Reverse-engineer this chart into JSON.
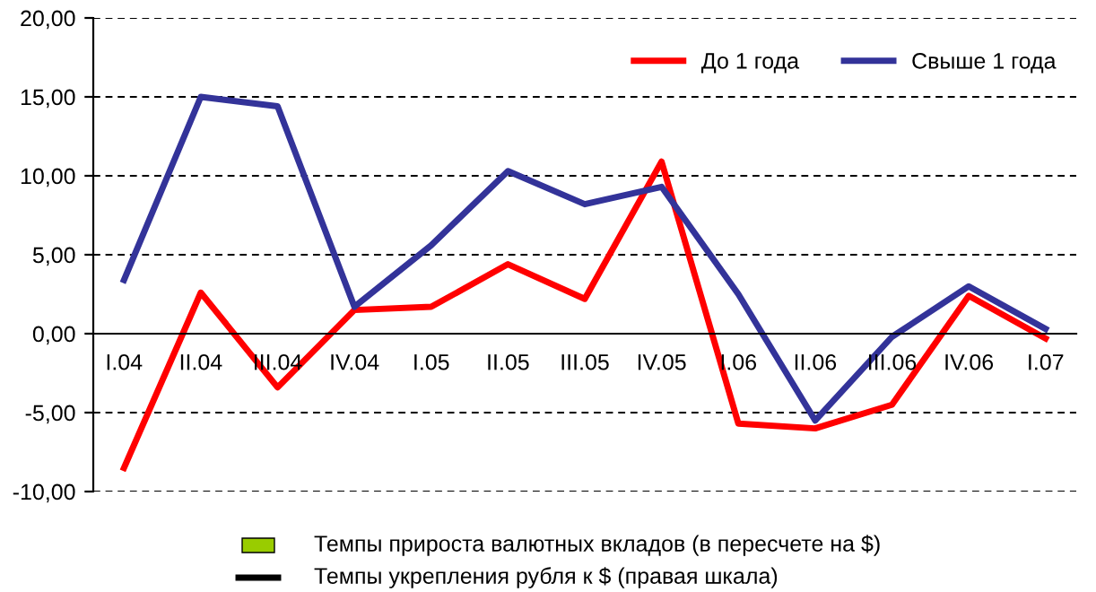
{
  "chart_data": {
    "type": "line",
    "categories": [
      "I.04",
      "II.04",
      "III.04",
      "IV.04",
      "I.05",
      "II.05",
      "III.05",
      "IV.05",
      "I.06",
      "II.06",
      "III.06",
      "IV.06",
      "I.07"
    ],
    "series": [
      {
        "name": "До 1 года",
        "color": "#ff0000",
        "values": [
          -8.5,
          2.6,
          -3.4,
          1.5,
          1.7,
          4.4,
          2.2,
          10.9,
          -5.7,
          -6.0,
          -4.5,
          2.4,
          -0.3
        ]
      },
      {
        "name": "Свыше 1 года",
        "color": "#333399",
        "values": [
          3.4,
          15.0,
          14.4,
          1.7,
          5.6,
          10.3,
          8.2,
          9.3,
          2.5,
          -5.5,
          -0.2,
          3.0,
          0.3
        ]
      }
    ],
    "annotations": [
      "Темпы прироста валютных вкладов (в пересчете на $)",
      "Темпы укрепления рубля к $ (правая шкала)"
    ],
    "ylim": [
      -10,
      20
    ],
    "yticks": [
      {
        "value": -10,
        "label": "-10,00"
      },
      {
        "value": -5,
        "label": "-5,00"
      },
      {
        "value": 0,
        "label": "0,00"
      },
      {
        "value": 5,
        "label": "5,00"
      },
      {
        "value": 10,
        "label": "10,00"
      },
      {
        "value": 15,
        "label": "15,00"
      },
      {
        "value": 20,
        "label": "20,00"
      }
    ],
    "grid": "y",
    "legend": "top right",
    "marker": "none",
    "line_style": "solid"
  }
}
